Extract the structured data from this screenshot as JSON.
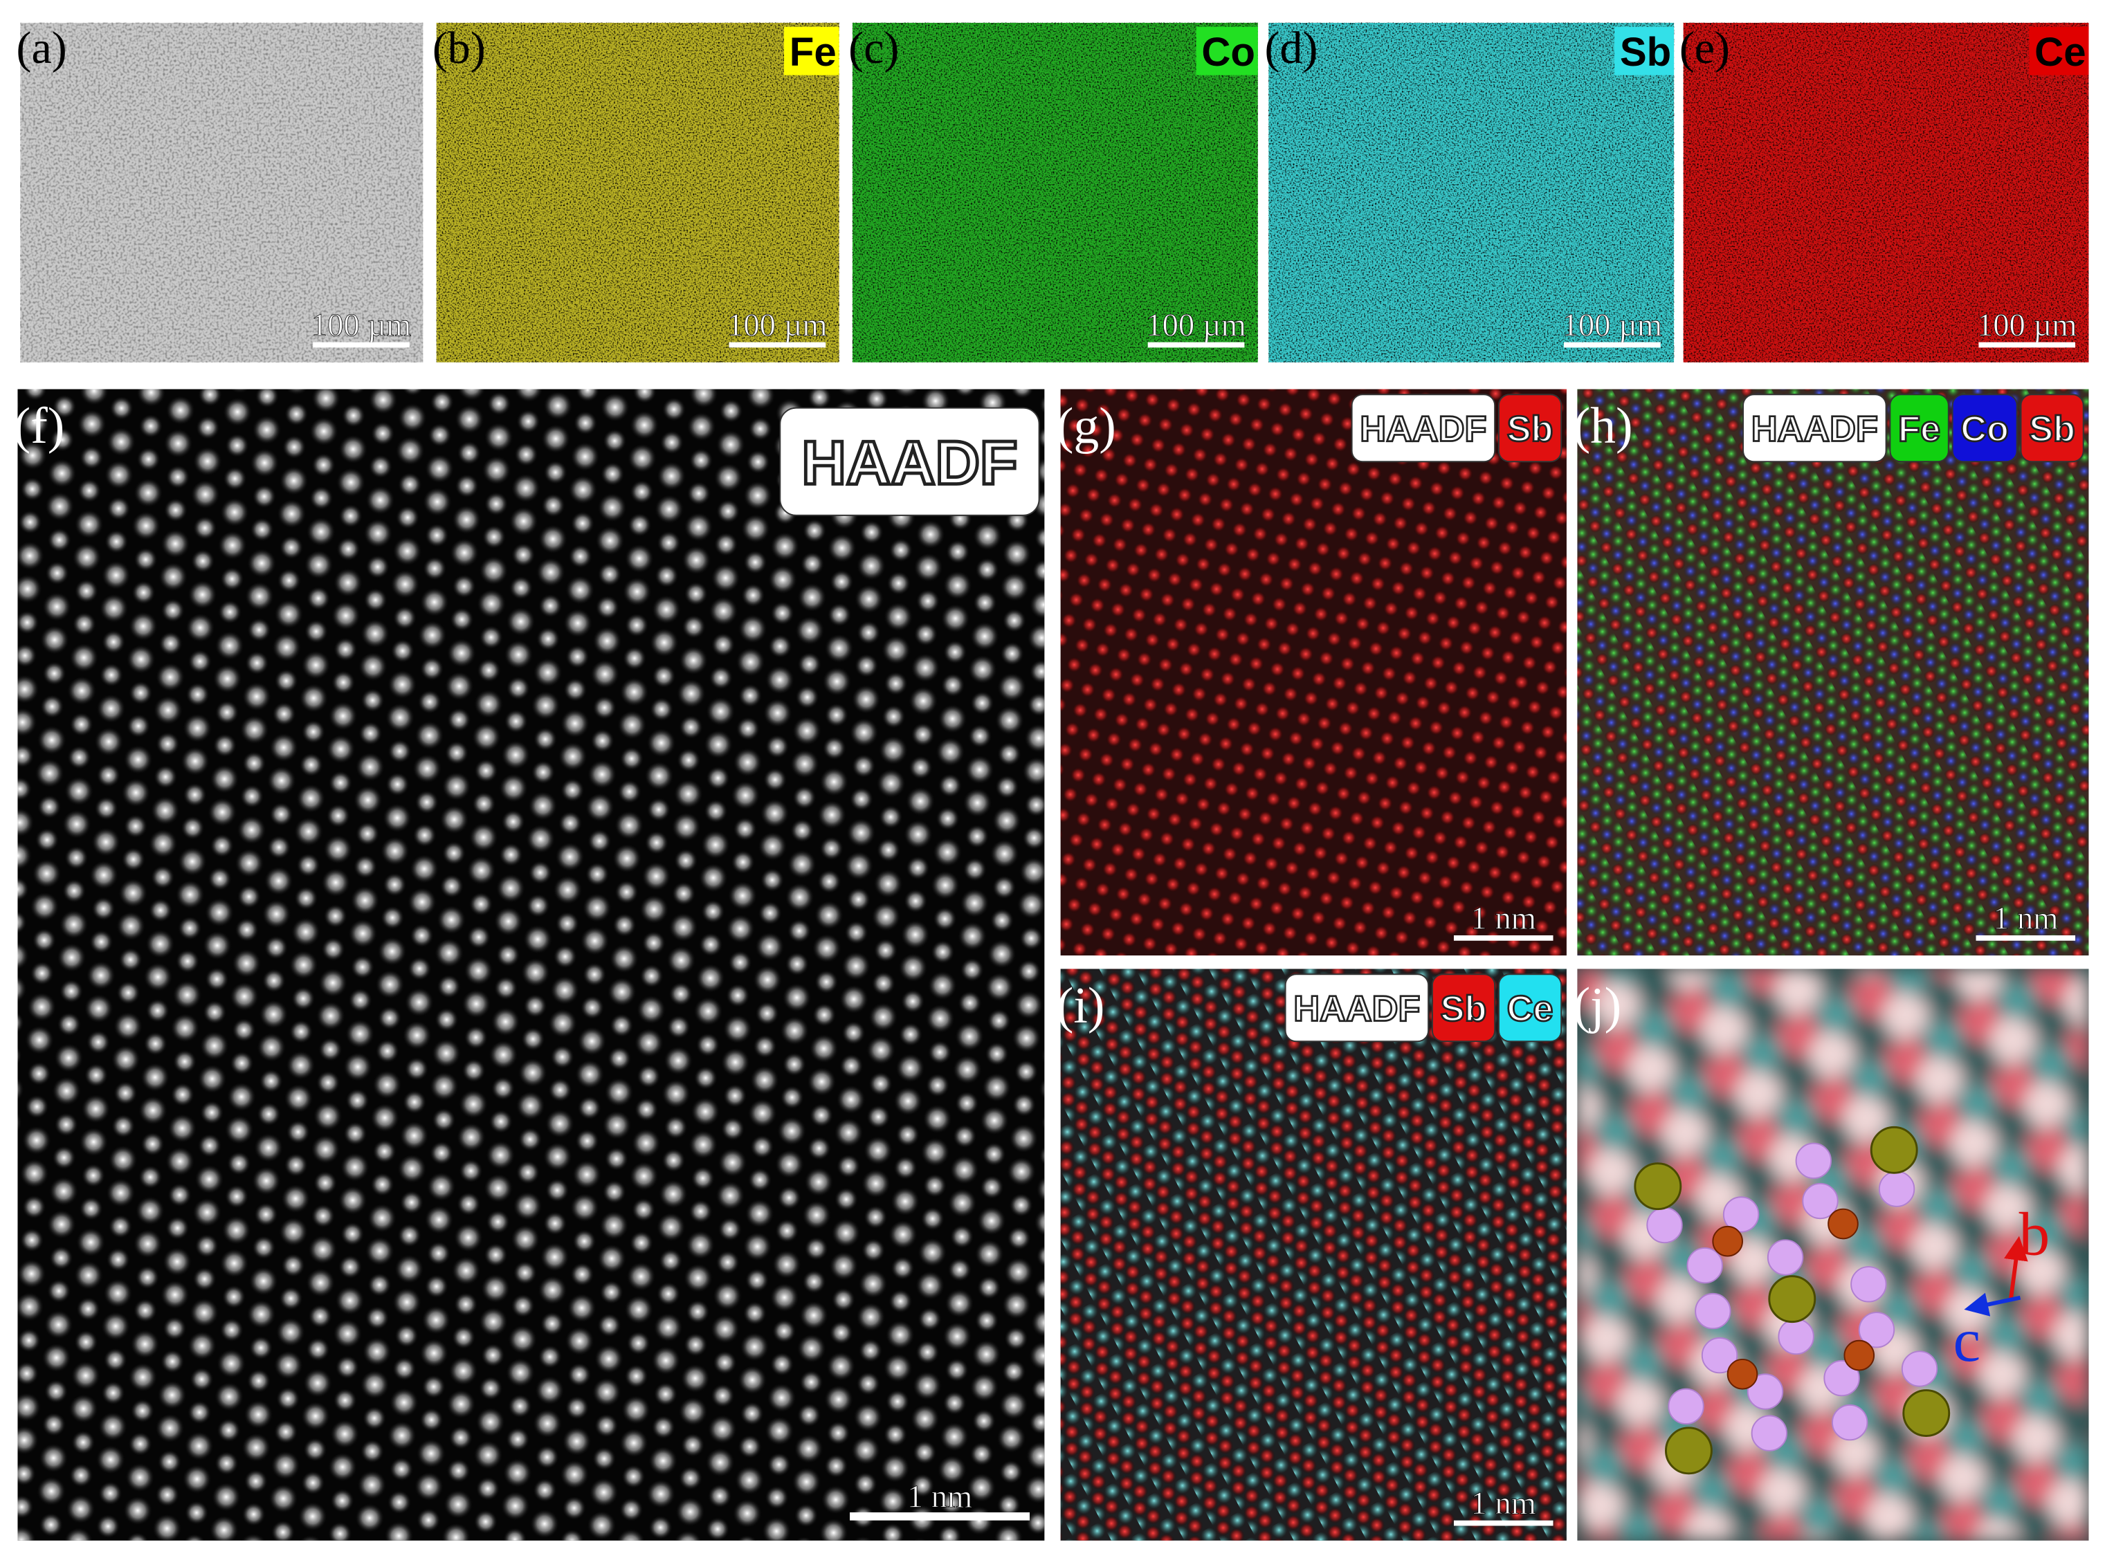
{
  "panels": [
    {
      "label": "(a)",
      "scale_bar": "100 µm"
    },
    {
      "label": "(b)",
      "tags": [
        {
          "text": "Fe",
          "color": "#ffff00"
        }
      ],
      "scale_bar": "100 µm"
    },
    {
      "label": "(c)",
      "tags": [
        {
          "text": "Co",
          "color": "#22e022"
        }
      ],
      "scale_bar": "100 µm"
    },
    {
      "label": "(d)",
      "tags": [
        {
          "text": "Sb",
          "color": "#33e0e8"
        }
      ],
      "scale_bar": "100 µm"
    },
    {
      "label": "(e)",
      "tags": [
        {
          "text": "Ce",
          "color": "#e00000"
        }
      ],
      "scale_bar": "100 µm"
    },
    {
      "label": "(f)",
      "tags": [
        {
          "text": "HAADF",
          "color": "#ffffff"
        }
      ],
      "scale_bar": "1 nm"
    },
    {
      "label": "(g)",
      "tags": [
        {
          "text": "HAADF",
          "color": "#ffffff"
        },
        {
          "text": "Sb",
          "color": "#e01010"
        }
      ],
      "scale_bar": "1 nm"
    },
    {
      "label": "(h)",
      "tags": [
        {
          "text": "HAADF",
          "color": "#ffffff"
        },
        {
          "text": "Fe",
          "color": "#10d010"
        },
        {
          "text": "Co",
          "color": "#1010d8"
        },
        {
          "text": "Sb",
          "color": "#e01010"
        }
      ],
      "scale_bar": "1 nm"
    },
    {
      "label": "(i)",
      "tags": [
        {
          "text": "HAADF",
          "color": "#ffffff"
        },
        {
          "text": "Sb",
          "color": "#e01010"
        },
        {
          "text": "Ce",
          "color": "#22e0f0"
        }
      ],
      "scale_bar": "1 nm"
    },
    {
      "label": "(j)",
      "axes": [
        "b",
        "c"
      ]
    }
  ]
}
